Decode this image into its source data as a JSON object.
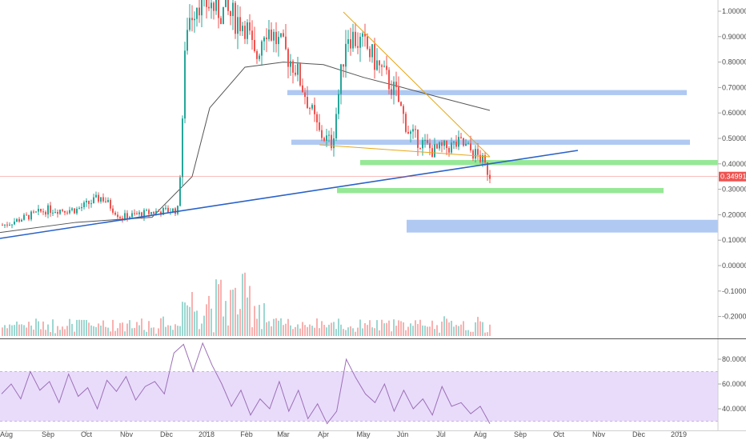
{
  "colors": {
    "up": "#26a69a",
    "down": "#ef5350",
    "ma": "#555555",
    "trendline_blue": "#2a62c9",
    "trendline_orange": "#e6a817",
    "zone_blue": "#9bbcf0",
    "zone_green": "#7be27b",
    "rsi_band": "#e9dcfb",
    "rsi_line": "#9c6fb6",
    "price_line": "#ef5350"
  },
  "chart_data": [
    {
      "type": "candlestick",
      "ylim": [
        -0.25,
        1.03
      ],
      "y_ticks": [
        "1.00000",
        "0.90000",
        "0.80000",
        "0.70000",
        "0.60000",
        "0.50000",
        "0.40000",
        "0.30000",
        "0.20000",
        "0.10000",
        "0.00000",
        "-0.10000",
        "-0.20000"
      ],
      "x_ticks": [
        "Aug",
        "Sep",
        "Oct",
        "Nov",
        "Dec",
        "2018",
        "Feb",
        "Mar",
        "Apr",
        "May",
        "Jun",
        "Jul",
        "Aug",
        "Sep",
        "Oct",
        "Nov",
        "Dec",
        "2019"
      ],
      "current_price": "0.34991",
      "price_path": [
        [
          "Aug",
          0.16
        ],
        [
          "Sep",
          0.22
        ],
        [
          "Oct",
          0.22
        ],
        [
          "Oct",
          0.27
        ],
        [
          "Nov",
          0.19
        ],
        [
          "Dec",
          0.21
        ],
        [
          "Dec",
          0.22
        ],
        [
          "2018",
          0.95
        ],
        [
          "2018",
          1.05
        ],
        [
          "Feb",
          0.95
        ],
        [
          "Feb",
          0.8
        ],
        [
          "Mar",
          0.95
        ],
        [
          "Mar",
          0.78
        ],
        [
          "Apr",
          0.52
        ],
        [
          "Apr",
          0.48
        ],
        [
          "May",
          0.92
        ],
        [
          "May",
          0.85
        ],
        [
          "Jun",
          0.68
        ],
        [
          "Jun",
          0.52
        ],
        [
          "Jul",
          0.45
        ],
        [
          "Jul",
          0.48
        ],
        [
          "Aug",
          0.42
        ],
        [
          "Aug",
          0.35
        ]
      ],
      "moving_average": [
        [
          "Aug",
          0.13
        ],
        [
          "Oct",
          0.17
        ],
        [
          "Dec",
          0.19
        ],
        [
          "2018",
          0.35
        ],
        [
          "2018",
          0.62
        ],
        [
          "Feb",
          0.78
        ],
        [
          "Mar",
          0.8
        ],
        [
          "Apr",
          0.79
        ],
        [
          "May",
          0.74
        ],
        [
          "Jun",
          0.7
        ],
        [
          "Jul",
          0.66
        ],
        [
          "Aug",
          0.61
        ]
      ],
      "trendlines": [
        {
          "name": "",
          "color": "trendline_blue",
          "from": [
            "Aug",
            0.105
          ],
          "to": [
            "Oct",
            0.45
          ]
        },
        {
          "name": "",
          "color": "trendline_orange",
          "from": [
            "Apr",
            0.99
          ],
          "to": [
            "Aug",
            0.42
          ]
        },
        {
          "name": "",
          "color": "trendline_orange",
          "from": [
            "Apr",
            0.465
          ],
          "to": [
            "Aug",
            0.42
          ]
        }
      ],
      "zones": [
        {
          "color": "zone_blue",
          "from": "Mar",
          "to": "Dec",
          "low": 0.67,
          "high": 0.69
        },
        {
          "color": "zone_blue",
          "from": "Mar",
          "to": "Dec",
          "low": 0.475,
          "high": 0.495
        },
        {
          "color": "zone_green",
          "from": "Apr",
          "to": "2019",
          "low": 0.395,
          "high": 0.415
        },
        {
          "color": "zone_green",
          "from": "Apr",
          "to": "Dec",
          "low": 0.285,
          "high": 0.305
        },
        {
          "color": "zone_blue",
          "from": "Aug",
          "to": "2019",
          "low": 0.13,
          "high": 0.18
        }
      ]
    },
    {
      "type": "line",
      "name": "",
      "ylim": [
        20,
        100
      ],
      "y_ticks": [
        "80.0000",
        "60.0000",
        "40.0000"
      ],
      "band": [
        30,
        70
      ],
      "values": [
        52,
        60,
        48,
        70,
        55,
        62,
        45,
        68,
        50,
        57,
        40,
        63,
        54,
        66,
        47,
        58,
        62,
        52,
        85,
        92,
        70,
        93,
        75,
        60,
        42,
        55,
        35,
        48,
        40,
        62,
        38,
        55,
        32,
        44,
        28,
        38,
        80,
        65,
        52,
        45,
        60,
        38,
        55,
        40,
        48,
        35,
        58,
        42,
        45,
        36,
        42,
        28
      ]
    }
  ]
}
